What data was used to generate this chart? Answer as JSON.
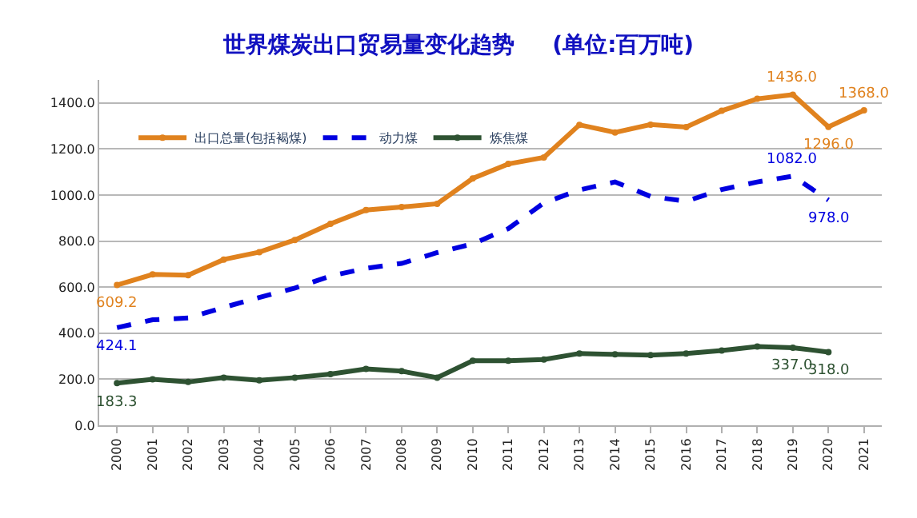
{
  "chart_data": {
    "type": "line",
    "title": "世界煤炭出口贸易量变化趋势 　 (单位:百万吨)",
    "categories": [
      "2000",
      "2001",
      "2002",
      "2003",
      "2004",
      "2005",
      "2006",
      "2007",
      "2008",
      "2009",
      "2010",
      "2011",
      "2012",
      "2013",
      "2014",
      "2015",
      "2016",
      "2017",
      "2018",
      "2019",
      "2020",
      "2021"
    ],
    "series": [
      {
        "name": "出口总量(包括褐煤)",
        "color": "#e0821e",
        "marker": "circle",
        "line_style": "solid",
        "values": [
          609.2,
          655,
          652,
          720,
          752,
          805,
          875,
          935,
          948,
          962,
          1072,
          1135,
          1163,
          1305,
          1272,
          1306,
          1295,
          1366,
          1418,
          1436,
          1296,
          1368
        ],
        "value_labels": [
          "609.2",
          null,
          null,
          null,
          null,
          null,
          null,
          null,
          null,
          null,
          null,
          null,
          null,
          null,
          null,
          null,
          null,
          null,
          null,
          "1436.0",
          "1296.0",
          "1368.0"
        ]
      },
      {
        "name": "动力煤",
        "color": "#0000e0",
        "marker": "none",
        "line_style": "dashed",
        "values": [
          424.1,
          458,
          466,
          512,
          555,
          596,
          648,
          682,
          703,
          750,
          788,
          854,
          966,
          1022,
          1057,
          994,
          973,
          1024,
          1057,
          1082,
          978,
          null
        ],
        "value_labels": [
          "424.1",
          null,
          null,
          null,
          null,
          null,
          null,
          null,
          null,
          null,
          null,
          null,
          null,
          null,
          null,
          null,
          null,
          null,
          null,
          "1082.0",
          "978.0",
          null
        ]
      },
      {
        "name": "炼焦煤",
        "color": "#2e5232",
        "marker": "circle",
        "line_style": "solid",
        "values": [
          183.3,
          200,
          188,
          207,
          195,
          207,
          222,
          245,
          235,
          207,
          280,
          280,
          286,
          312,
          308,
          305,
          312,
          325,
          342,
          337,
          318,
          null
        ],
        "value_labels": [
          "183.3",
          null,
          null,
          null,
          null,
          null,
          null,
          null,
          null,
          null,
          null,
          null,
          null,
          null,
          null,
          null,
          null,
          null,
          null,
          "337.0",
          "318.0",
          null
        ]
      }
    ],
    "ylim": [
      0,
      1500
    ],
    "yticks": [
      {
        "value": 0,
        "label": "0.0"
      },
      {
        "value": 200,
        "label": "200.0"
      },
      {
        "value": 400,
        "label": "400.0"
      },
      {
        "value": 600,
        "label": "600.0"
      },
      {
        "value": 800,
        "label": "800.0"
      },
      {
        "value": 1000,
        "label": "1000.0"
      },
      {
        "value": 1200,
        "label": "1200.0"
      },
      {
        "value": 1400,
        "label": "1400.0"
      }
    ],
    "grid": "y",
    "legend": "top left"
  }
}
